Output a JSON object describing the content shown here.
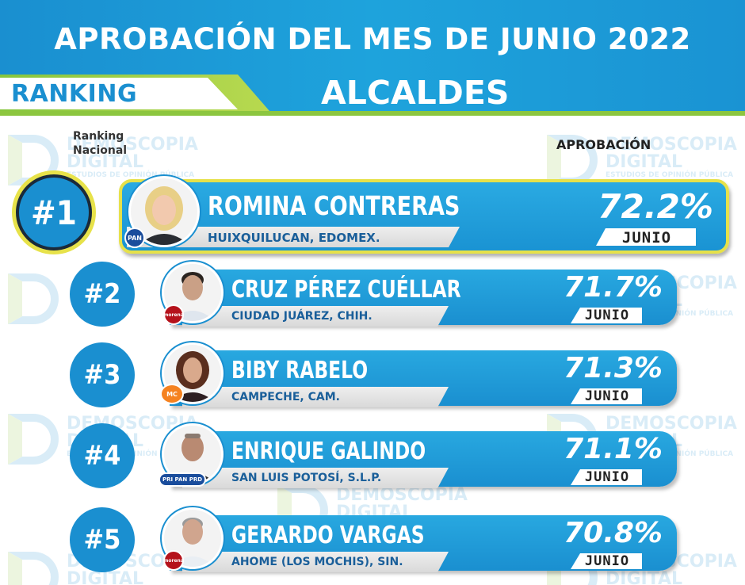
{
  "header": {
    "title": "APROBACIÓN DEL MES DE JUNIO 2022",
    "ranking_label": "RANKING",
    "category": "ALCALDES"
  },
  "columns": {
    "ranking_line1": "Ranking",
    "ranking_line2": "Nacional",
    "approval": "APROBACIÓN"
  },
  "watermark": {
    "line1": "DEMOSCOPIA",
    "line2": "DIGITAL",
    "line3": "ESTUDIOS DE OPINIÓN PÚBLICA"
  },
  "colors": {
    "brand_blue": "#1a8fd0",
    "brand_green": "#8cc63f",
    "highlight_yellow": "#e6e14a"
  },
  "rows": [
    {
      "rank": "#1",
      "name": "ROMINA CONTRERAS",
      "place": "HUIXQUILUCAN, EDOMEX.",
      "approval": "72.2%",
      "month": "JUNIO",
      "party": "PAN",
      "party_color": "#1a4d9c",
      "avatar_icon": "woman-portrait-icon"
    },
    {
      "rank": "#2",
      "name": "CRUZ PÉREZ CUÉLLAR",
      "place": "CIUDAD JUÁREZ, CHIH.",
      "approval": "71.7%",
      "month": "JUNIO",
      "party": "morena",
      "party_color": "#b5121b",
      "avatar_icon": "man-portrait-icon"
    },
    {
      "rank": "#3",
      "name": "BIBY RABELO",
      "place": "CAMPECHE, CAM.",
      "approval": "71.3%",
      "month": "JUNIO",
      "party": "MC",
      "party_color": "#f58220",
      "avatar_icon": "woman-portrait-icon"
    },
    {
      "rank": "#4",
      "name": "ENRIQUE GALINDO",
      "place": "SAN LUIS POTOSÍ, S.L.P.",
      "approval": "71.1%",
      "month": "JUNIO",
      "party": "PRI PAN PRD",
      "party_color": "#1a4d9c",
      "avatar_icon": "man-portrait-icon"
    },
    {
      "rank": "#5",
      "name": "GERARDO VARGAS",
      "place": "AHOME (LOS MOCHIS), SIN.",
      "approval": "70.8%",
      "month": "JUNIO",
      "party": "morena",
      "party_color": "#b5121b",
      "avatar_icon": "man-portrait-icon"
    }
  ]
}
